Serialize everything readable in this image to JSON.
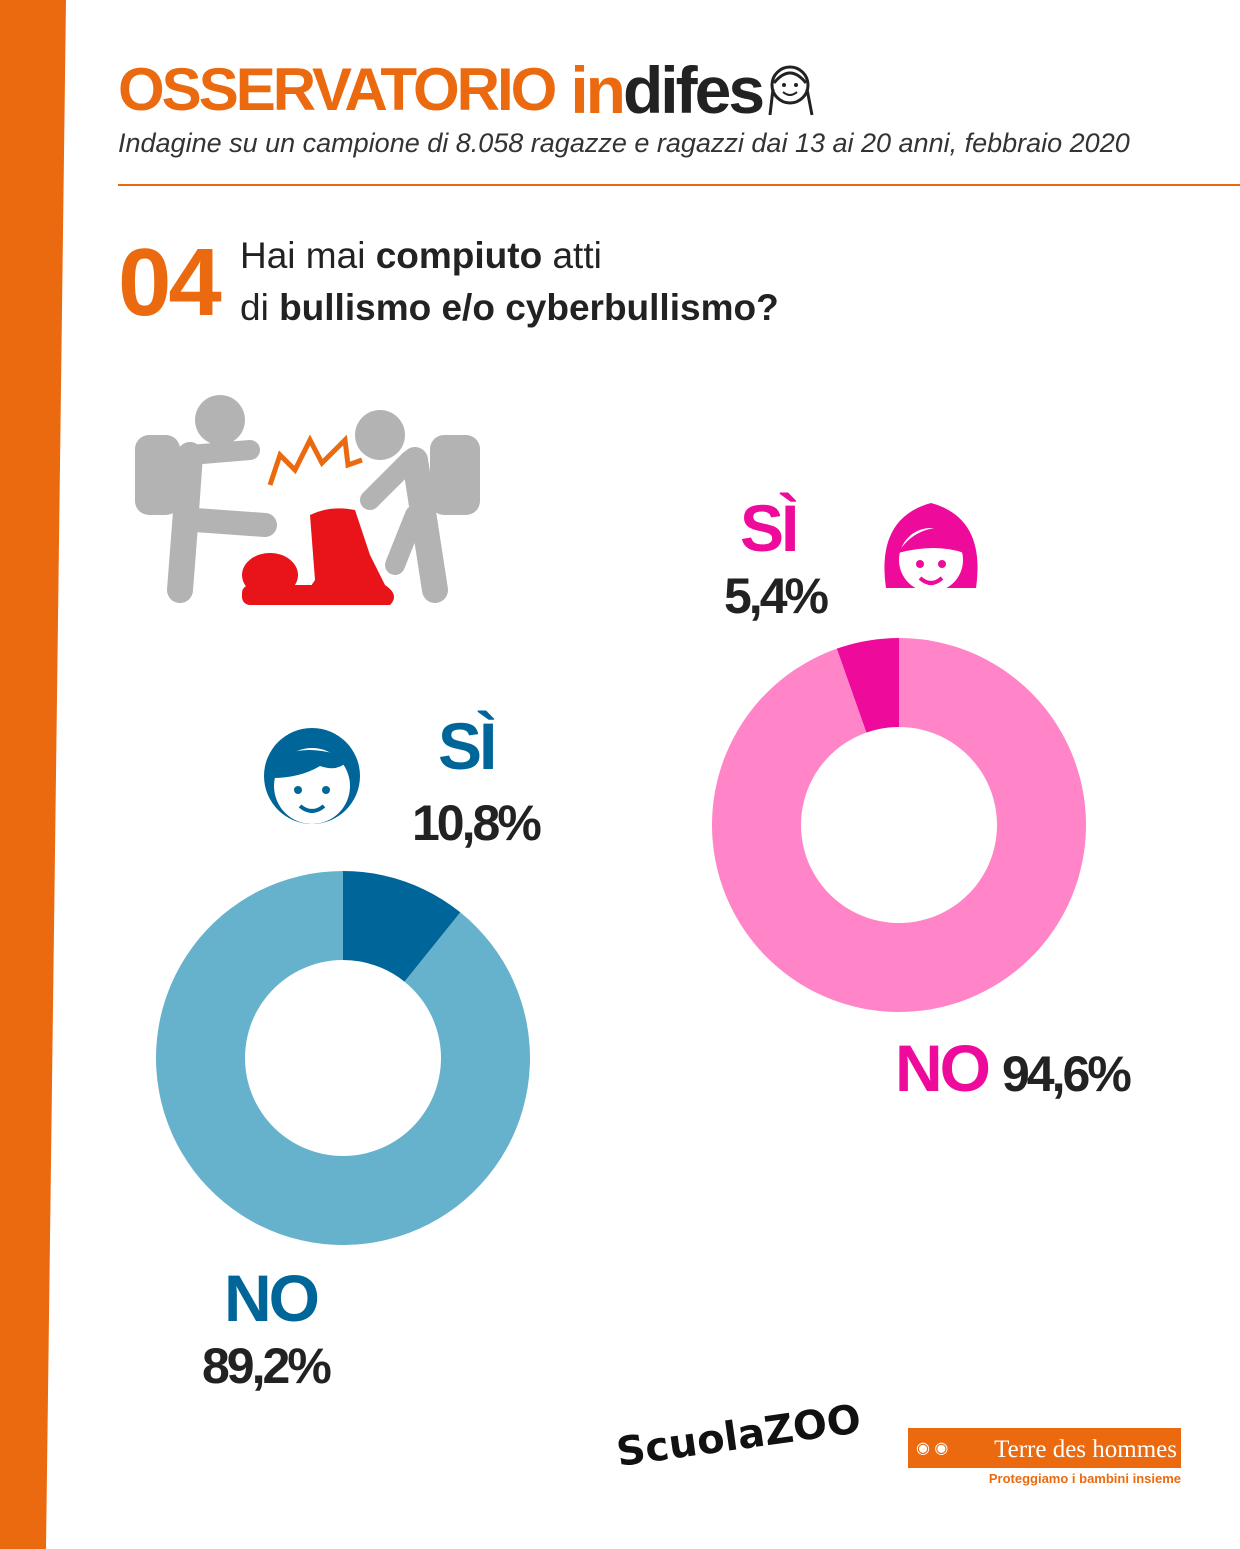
{
  "header": {
    "title_part1": "OSSERVATORIO",
    "title_part2_orange": "in",
    "title_part2_dark": "difesa",
    "subtitle": "Indagine su un campione di 8.058 ragazze e ragazzi dai 13 ai 20 anni, febbraio 2020"
  },
  "question": {
    "number": "04",
    "line1_pre": "Hai mai ",
    "line1_bold": "compiuto",
    "line1_post": " atti",
    "line2_pre": "di ",
    "line2_bold": "bullismo e/o cyberbullismo?"
  },
  "chart_data": [
    {
      "type": "pie",
      "title": "Ragazzi",
      "categories": [
        "SÌ",
        "NO"
      ],
      "values": [
        10.8,
        89.2
      ],
      "labels": [
        "10,8%",
        "89,2%"
      ],
      "colors": [
        "#006699",
        "#66b2cc"
      ],
      "label_color": "#006699"
    },
    {
      "type": "pie",
      "title": "Ragazze",
      "categories": [
        "SÌ",
        "NO"
      ],
      "values": [
        5.4,
        94.6
      ],
      "labels": [
        "5,4%",
        "94,6%"
      ],
      "colors": [
        "#ee0a9a",
        "#ff85c8"
      ],
      "label_color": "#ee0a9a"
    }
  ],
  "footer": {
    "logo1": "ScuolaZOO",
    "logo2": "Terre des hommes",
    "logo2_tagline": "Proteggiamo i bambini insieme"
  },
  "colors": {
    "accent": "#ec6a0f"
  }
}
